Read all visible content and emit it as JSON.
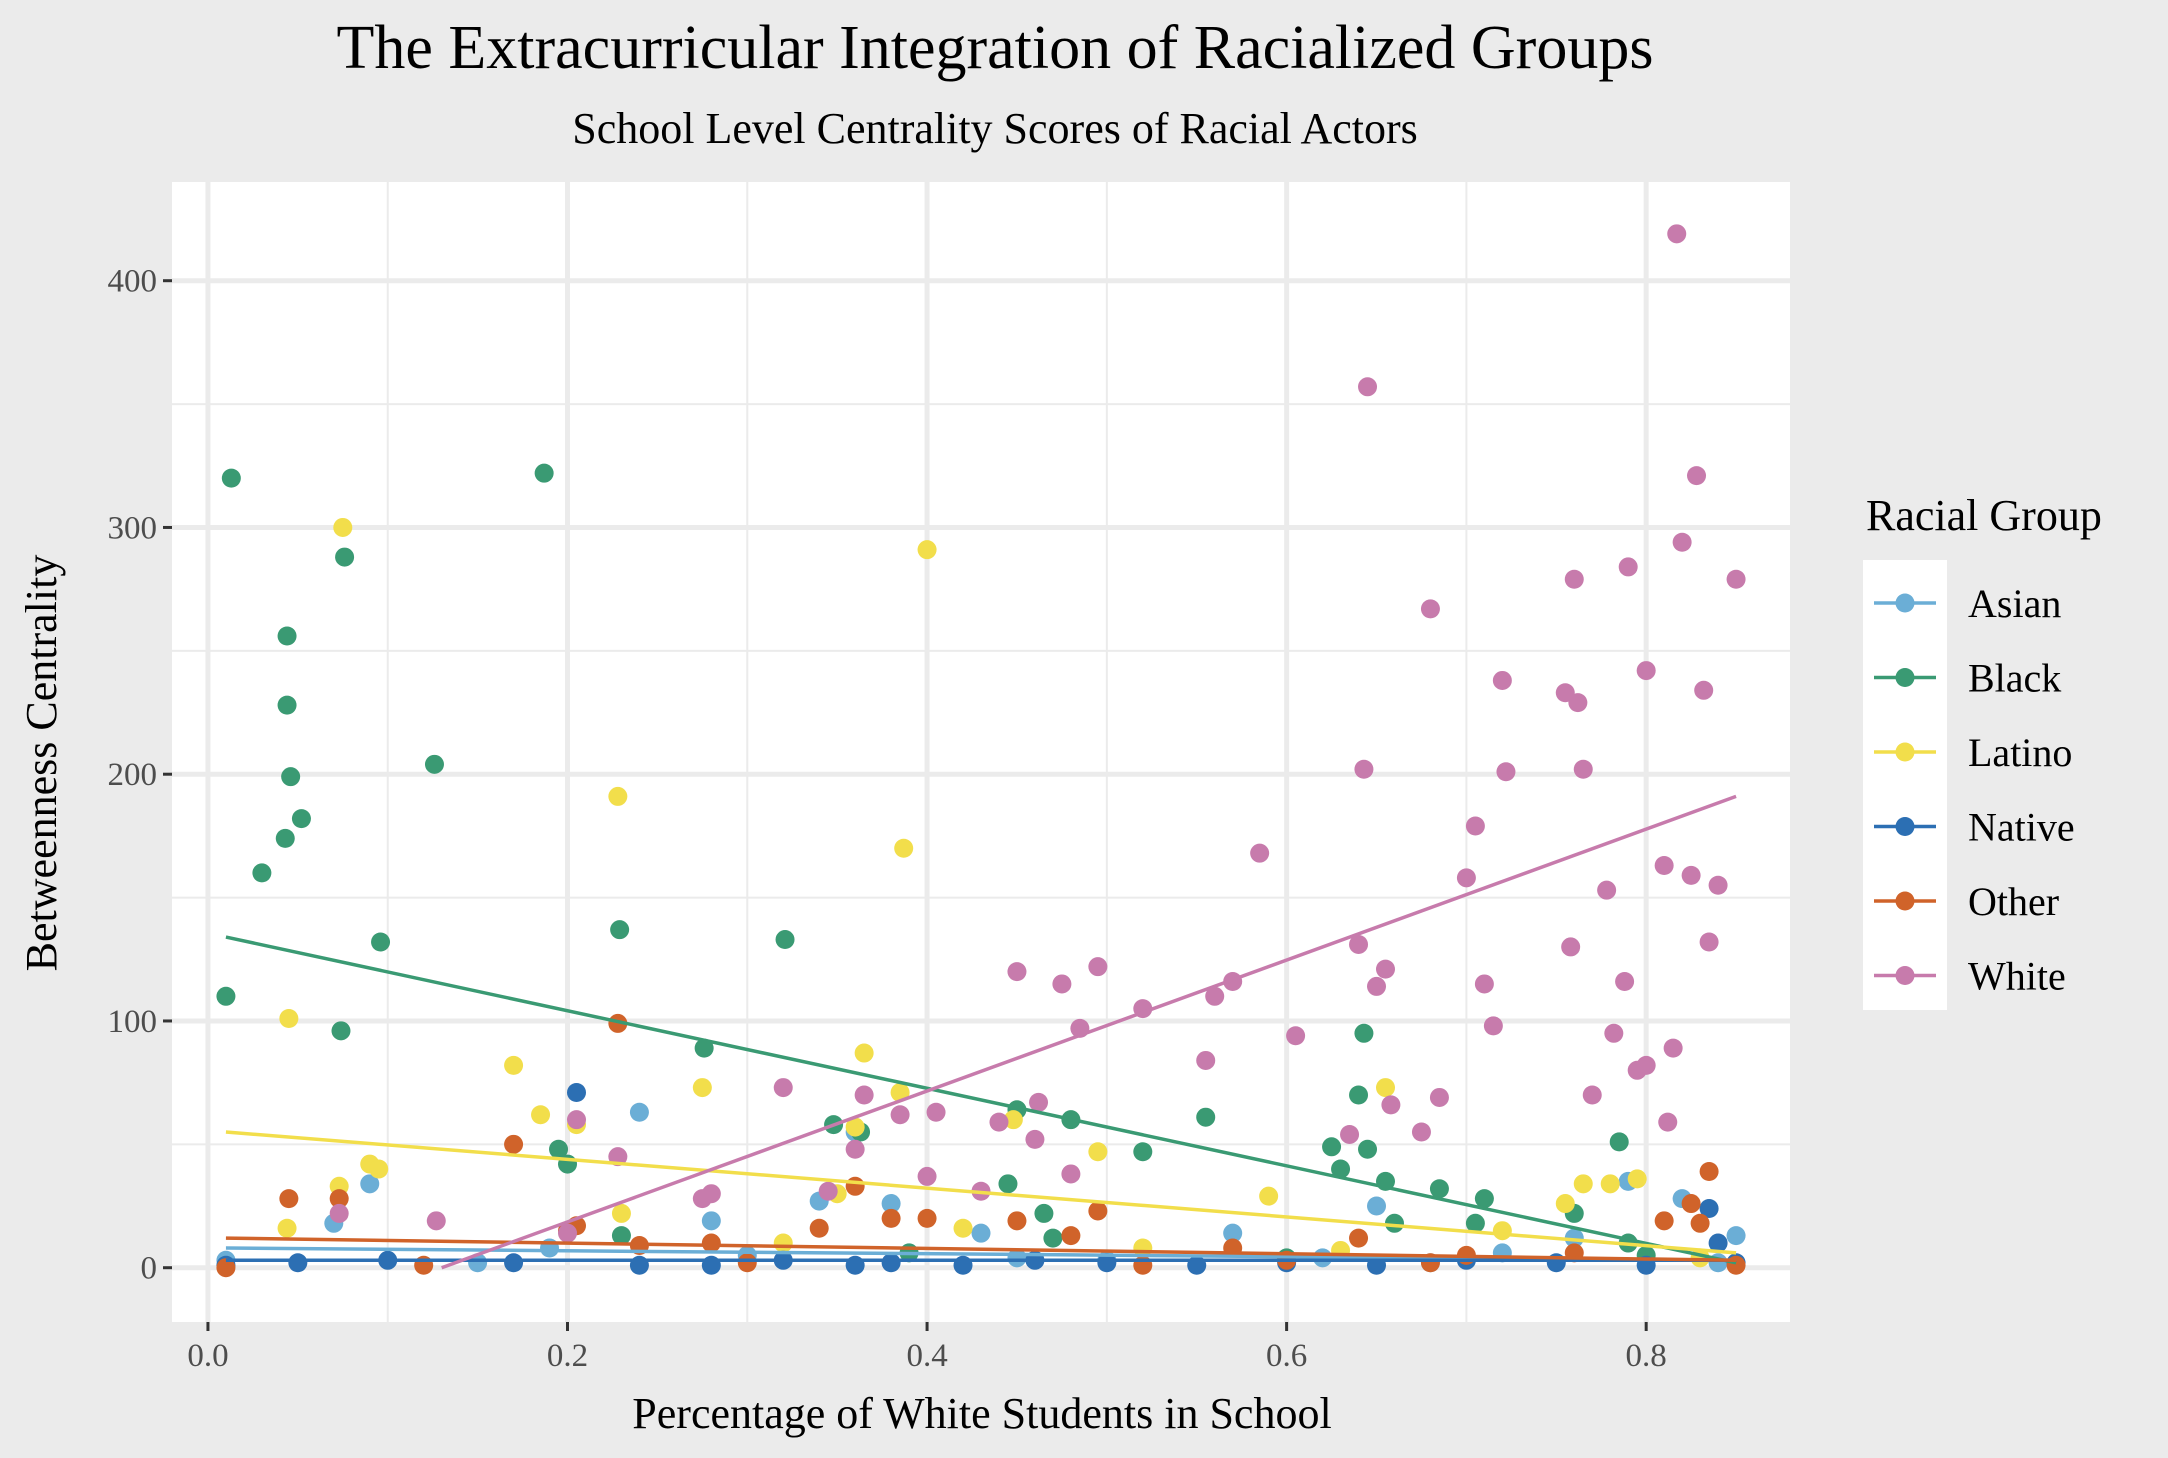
{
  "chart_data": {
    "type": "scatter",
    "title": "The Extracurricular Integration of Racialized Groups",
    "subtitle": "School Level Centrality Scores of Racial Actors",
    "xlabel": "Percentage of White Students in School",
    "ylabel": "Betweenness Centrality",
    "xlim": [
      -0.02,
      0.88
    ],
    "ylim": [
      -22,
      440
    ],
    "x_ticks": [
      0.0,
      0.2,
      0.4,
      0.6,
      0.8
    ],
    "x_tick_labels": [
      "0.0",
      "0.2",
      "0.4",
      "0.6",
      "0.8"
    ],
    "y_ticks": [
      0,
      100,
      200,
      300,
      400
    ],
    "y_tick_labels": [
      "0",
      "100",
      "200",
      "300",
      "400"
    ],
    "grid": true,
    "legend": {
      "title": "Racial Group",
      "placement": "right"
    },
    "series": [
      {
        "name": "Asian",
        "color": "#6baed6",
        "trend": [
          [
            0.01,
            8
          ],
          [
            0.85,
            3
          ]
        ],
        "points": [
          [
            0.01,
            3
          ],
          [
            0.07,
            18
          ],
          [
            0.09,
            34
          ],
          [
            0.19,
            8
          ],
          [
            0.24,
            63
          ],
          [
            0.28,
            19
          ],
          [
            0.34,
            27
          ],
          [
            0.36,
            55
          ],
          [
            0.38,
            26
          ],
          [
            0.43,
            14
          ],
          [
            0.57,
            14
          ],
          [
            0.65,
            25
          ],
          [
            0.76,
            12
          ],
          [
            0.79,
            35
          ],
          [
            0.82,
            28
          ],
          [
            0.85,
            13
          ],
          [
            0.15,
            2
          ],
          [
            0.3,
            5
          ],
          [
            0.5,
            3
          ],
          [
            0.62,
            4
          ],
          [
            0.72,
            6
          ],
          [
            0.84,
            2
          ],
          [
            0.45,
            4
          ],
          [
            0.68,
            2
          ]
        ]
      },
      {
        "name": "Black",
        "color": "#3a9a73",
        "trend": [
          [
            0.01,
            134
          ],
          [
            0.85,
            2
          ]
        ],
        "points": [
          [
            0.01,
            110
          ],
          [
            0.013,
            320
          ],
          [
            0.03,
            160
          ],
          [
            0.043,
            174
          ],
          [
            0.044,
            228
          ],
          [
            0.044,
            256
          ],
          [
            0.046,
            199
          ],
          [
            0.052,
            182
          ],
          [
            0.074,
            96
          ],
          [
            0.076,
            288
          ],
          [
            0.096,
            132
          ],
          [
            0.126,
            204
          ],
          [
            0.187,
            322
          ],
          [
            0.195,
            48
          ],
          [
            0.2,
            42
          ],
          [
            0.229,
            137
          ],
          [
            0.276,
            89
          ],
          [
            0.321,
            133
          ],
          [
            0.348,
            58
          ],
          [
            0.363,
            55
          ],
          [
            0.445,
            34
          ],
          [
            0.45,
            64
          ],
          [
            0.465,
            22
          ],
          [
            0.48,
            60
          ],
          [
            0.52,
            47
          ],
          [
            0.555,
            61
          ],
          [
            0.625,
            49
          ],
          [
            0.63,
            40
          ],
          [
            0.64,
            70
          ],
          [
            0.643,
            95
          ],
          [
            0.645,
            48
          ],
          [
            0.655,
            35
          ],
          [
            0.66,
            18
          ],
          [
            0.685,
            32
          ],
          [
            0.705,
            18
          ],
          [
            0.71,
            28
          ],
          [
            0.76,
            22
          ],
          [
            0.785,
            51
          ],
          [
            0.79,
            10
          ],
          [
            0.8,
            5
          ],
          [
            0.23,
            13
          ],
          [
            0.39,
            6
          ],
          [
            0.6,
            4
          ],
          [
            0.47,
            12
          ]
        ]
      },
      {
        "name": "Latino",
        "color": "#f2de4b",
        "trend": [
          [
            0.01,
            55
          ],
          [
            0.85,
            6
          ]
        ],
        "points": [
          [
            0.045,
            101
          ],
          [
            0.044,
            16
          ],
          [
            0.073,
            33
          ],
          [
            0.075,
            300
          ],
          [
            0.09,
            42
          ],
          [
            0.095,
            40
          ],
          [
            0.17,
            82
          ],
          [
            0.185,
            62
          ],
          [
            0.205,
            58
          ],
          [
            0.228,
            191
          ],
          [
            0.275,
            73
          ],
          [
            0.35,
            30
          ],
          [
            0.36,
            57
          ],
          [
            0.365,
            87
          ],
          [
            0.385,
            71
          ],
          [
            0.387,
            170
          ],
          [
            0.4,
            291
          ],
          [
            0.42,
            16
          ],
          [
            0.448,
            60
          ],
          [
            0.495,
            47
          ],
          [
            0.59,
            29
          ],
          [
            0.655,
            73
          ],
          [
            0.72,
            15
          ],
          [
            0.755,
            26
          ],
          [
            0.765,
            34
          ],
          [
            0.78,
            34
          ],
          [
            0.795,
            36
          ],
          [
            0.23,
            22
          ],
          [
            0.32,
            10
          ],
          [
            0.52,
            8
          ],
          [
            0.63,
            7
          ],
          [
            0.83,
            4
          ]
        ]
      },
      {
        "name": "Native",
        "color": "#2c6fb3",
        "trend": [
          [
            0.01,
            3
          ],
          [
            0.85,
            3
          ]
        ],
        "points": [
          [
            0.01,
            1
          ],
          [
            0.05,
            2
          ],
          [
            0.1,
            3
          ],
          [
            0.17,
            2
          ],
          [
            0.205,
            71
          ],
          [
            0.24,
            1
          ],
          [
            0.28,
            1
          ],
          [
            0.32,
            3
          ],
          [
            0.36,
            1
          ],
          [
            0.38,
            2
          ],
          [
            0.42,
            1
          ],
          [
            0.46,
            3
          ],
          [
            0.5,
            2
          ],
          [
            0.55,
            1
          ],
          [
            0.6,
            2
          ],
          [
            0.65,
            1
          ],
          [
            0.7,
            3
          ],
          [
            0.75,
            2
          ],
          [
            0.8,
            1
          ],
          [
            0.835,
            24
          ],
          [
            0.84,
            10
          ],
          [
            0.85,
            2
          ]
        ]
      },
      {
        "name": "Other",
        "color": "#d0632a",
        "trend": [
          [
            0.01,
            12
          ],
          [
            0.85,
            3
          ]
        ],
        "points": [
          [
            0.01,
            0
          ],
          [
            0.045,
            28
          ],
          [
            0.073,
            28
          ],
          [
            0.17,
            50
          ],
          [
            0.2,
            15
          ],
          [
            0.205,
            17
          ],
          [
            0.228,
            99
          ],
          [
            0.24,
            9
          ],
          [
            0.28,
            10
          ],
          [
            0.34,
            16
          ],
          [
            0.36,
            33
          ],
          [
            0.38,
            20
          ],
          [
            0.4,
            20
          ],
          [
            0.45,
            19
          ],
          [
            0.48,
            13
          ],
          [
            0.495,
            23
          ],
          [
            0.57,
            8
          ],
          [
            0.64,
            12
          ],
          [
            0.7,
            5
          ],
          [
            0.76,
            6
          ],
          [
            0.81,
            19
          ],
          [
            0.825,
            26
          ],
          [
            0.83,
            18
          ],
          [
            0.835,
            39
          ],
          [
            0.85,
            1
          ],
          [
            0.12,
            1
          ],
          [
            0.3,
            2
          ],
          [
            0.52,
            1
          ],
          [
            0.6,
            3
          ],
          [
            0.68,
            2
          ]
        ]
      },
      {
        "name": "White",
        "color": "#c77bac",
        "trend": [
          [
            0.13,
            0
          ],
          [
            0.85,
            191
          ]
        ],
        "points": [
          [
            0.073,
            22
          ],
          [
            0.127,
            19
          ],
          [
            0.2,
            14
          ],
          [
            0.205,
            60
          ],
          [
            0.228,
            45
          ],
          [
            0.275,
            28
          ],
          [
            0.28,
            30
          ],
          [
            0.32,
            73
          ],
          [
            0.345,
            31
          ],
          [
            0.36,
            48
          ],
          [
            0.365,
            70
          ],
          [
            0.385,
            62
          ],
          [
            0.4,
            37
          ],
          [
            0.405,
            63
          ],
          [
            0.43,
            31
          ],
          [
            0.44,
            59
          ],
          [
            0.45,
            120
          ],
          [
            0.46,
            52
          ],
          [
            0.462,
            67
          ],
          [
            0.475,
            115
          ],
          [
            0.48,
            38
          ],
          [
            0.485,
            97
          ],
          [
            0.495,
            122
          ],
          [
            0.52,
            105
          ],
          [
            0.555,
            84
          ],
          [
            0.56,
            110
          ],
          [
            0.57,
            116
          ],
          [
            0.585,
            168
          ],
          [
            0.605,
            94
          ],
          [
            0.635,
            54
          ],
          [
            0.64,
            131
          ],
          [
            0.643,
            202
          ],
          [
            0.645,
            357
          ],
          [
            0.65,
            114
          ],
          [
            0.655,
            121
          ],
          [
            0.658,
            66
          ],
          [
            0.675,
            55
          ],
          [
            0.68,
            267
          ],
          [
            0.685,
            69
          ],
          [
            0.7,
            158
          ],
          [
            0.705,
            179
          ],
          [
            0.71,
            115
          ],
          [
            0.715,
            98
          ],
          [
            0.72,
            238
          ],
          [
            0.722,
            201
          ],
          [
            0.755,
            233
          ],
          [
            0.758,
            130
          ],
          [
            0.76,
            279
          ],
          [
            0.762,
            229
          ],
          [
            0.765,
            202
          ],
          [
            0.77,
            70
          ],
          [
            0.778,
            153
          ],
          [
            0.782,
            95
          ],
          [
            0.788,
            116
          ],
          [
            0.79,
            284
          ],
          [
            0.795,
            80
          ],
          [
            0.8,
            242
          ],
          [
            0.8,
            82
          ],
          [
            0.81,
            163
          ],
          [
            0.812,
            59
          ],
          [
            0.815,
            89
          ],
          [
            0.817,
            419
          ],
          [
            0.82,
            294
          ],
          [
            0.825,
            159
          ],
          [
            0.828,
            321
          ],
          [
            0.832,
            234
          ],
          [
            0.835,
            132
          ],
          [
            0.84,
            155
          ],
          [
            0.85,
            279
          ]
        ]
      }
    ]
  }
}
